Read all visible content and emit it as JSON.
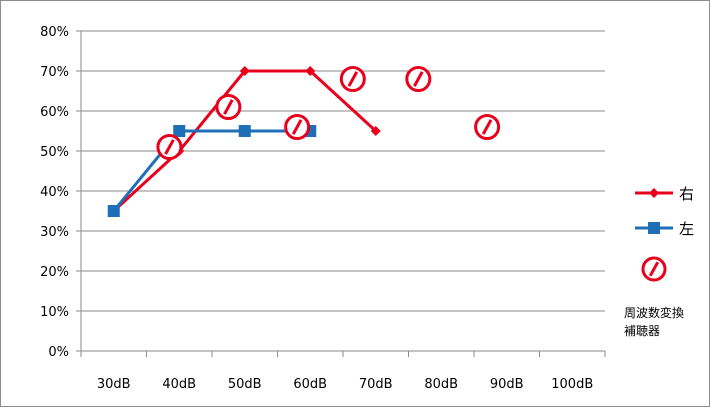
{
  "chart_data": {
    "type": "line",
    "categories": [
      "30dB",
      "40dB",
      "50dB",
      "60dB",
      "70dB",
      "80dB",
      "90dB",
      "100dB"
    ],
    "ylim": [
      0,
      80
    ],
    "ytick_values": [
      0,
      10,
      20,
      30,
      40,
      50,
      60,
      70,
      80
    ],
    "ytick_labels": [
      "0%",
      "10%",
      "20%",
      "30%",
      "40%",
      "50%",
      "60%",
      "70%",
      "80%"
    ],
    "grid": true,
    "legend_position": "right",
    "series": [
      {
        "name": "右",
        "marker": "diamond",
        "color": "#e8001c",
        "points": [
          [
            0.5,
            35
          ],
          [
            1.5,
            50
          ],
          [
            2.5,
            70
          ],
          [
            3.5,
            70
          ],
          [
            4.5,
            55
          ]
        ]
      },
      {
        "name": "左",
        "marker": "square",
        "color": "#1f6fb8",
        "points": [
          [
            0.5,
            35
          ],
          [
            1.5,
            55
          ],
          [
            2.5,
            55
          ],
          [
            3.5,
            55
          ]
        ]
      },
      {
        "name": "周波数変換補聴器",
        "marker": "circle-slash",
        "color": "#e8001c",
        "points": [
          [
            1.35,
            51
          ],
          [
            2.25,
            61
          ],
          [
            3.3,
            56
          ],
          [
            4.15,
            68
          ],
          [
            5.15,
            68
          ],
          [
            6.2,
            56
          ]
        ]
      }
    ],
    "legend": [
      {
        "label": "右"
      },
      {
        "label": "左"
      },
      {
        "label": "周波数変換",
        "label2": "補聴器"
      }
    ]
  }
}
